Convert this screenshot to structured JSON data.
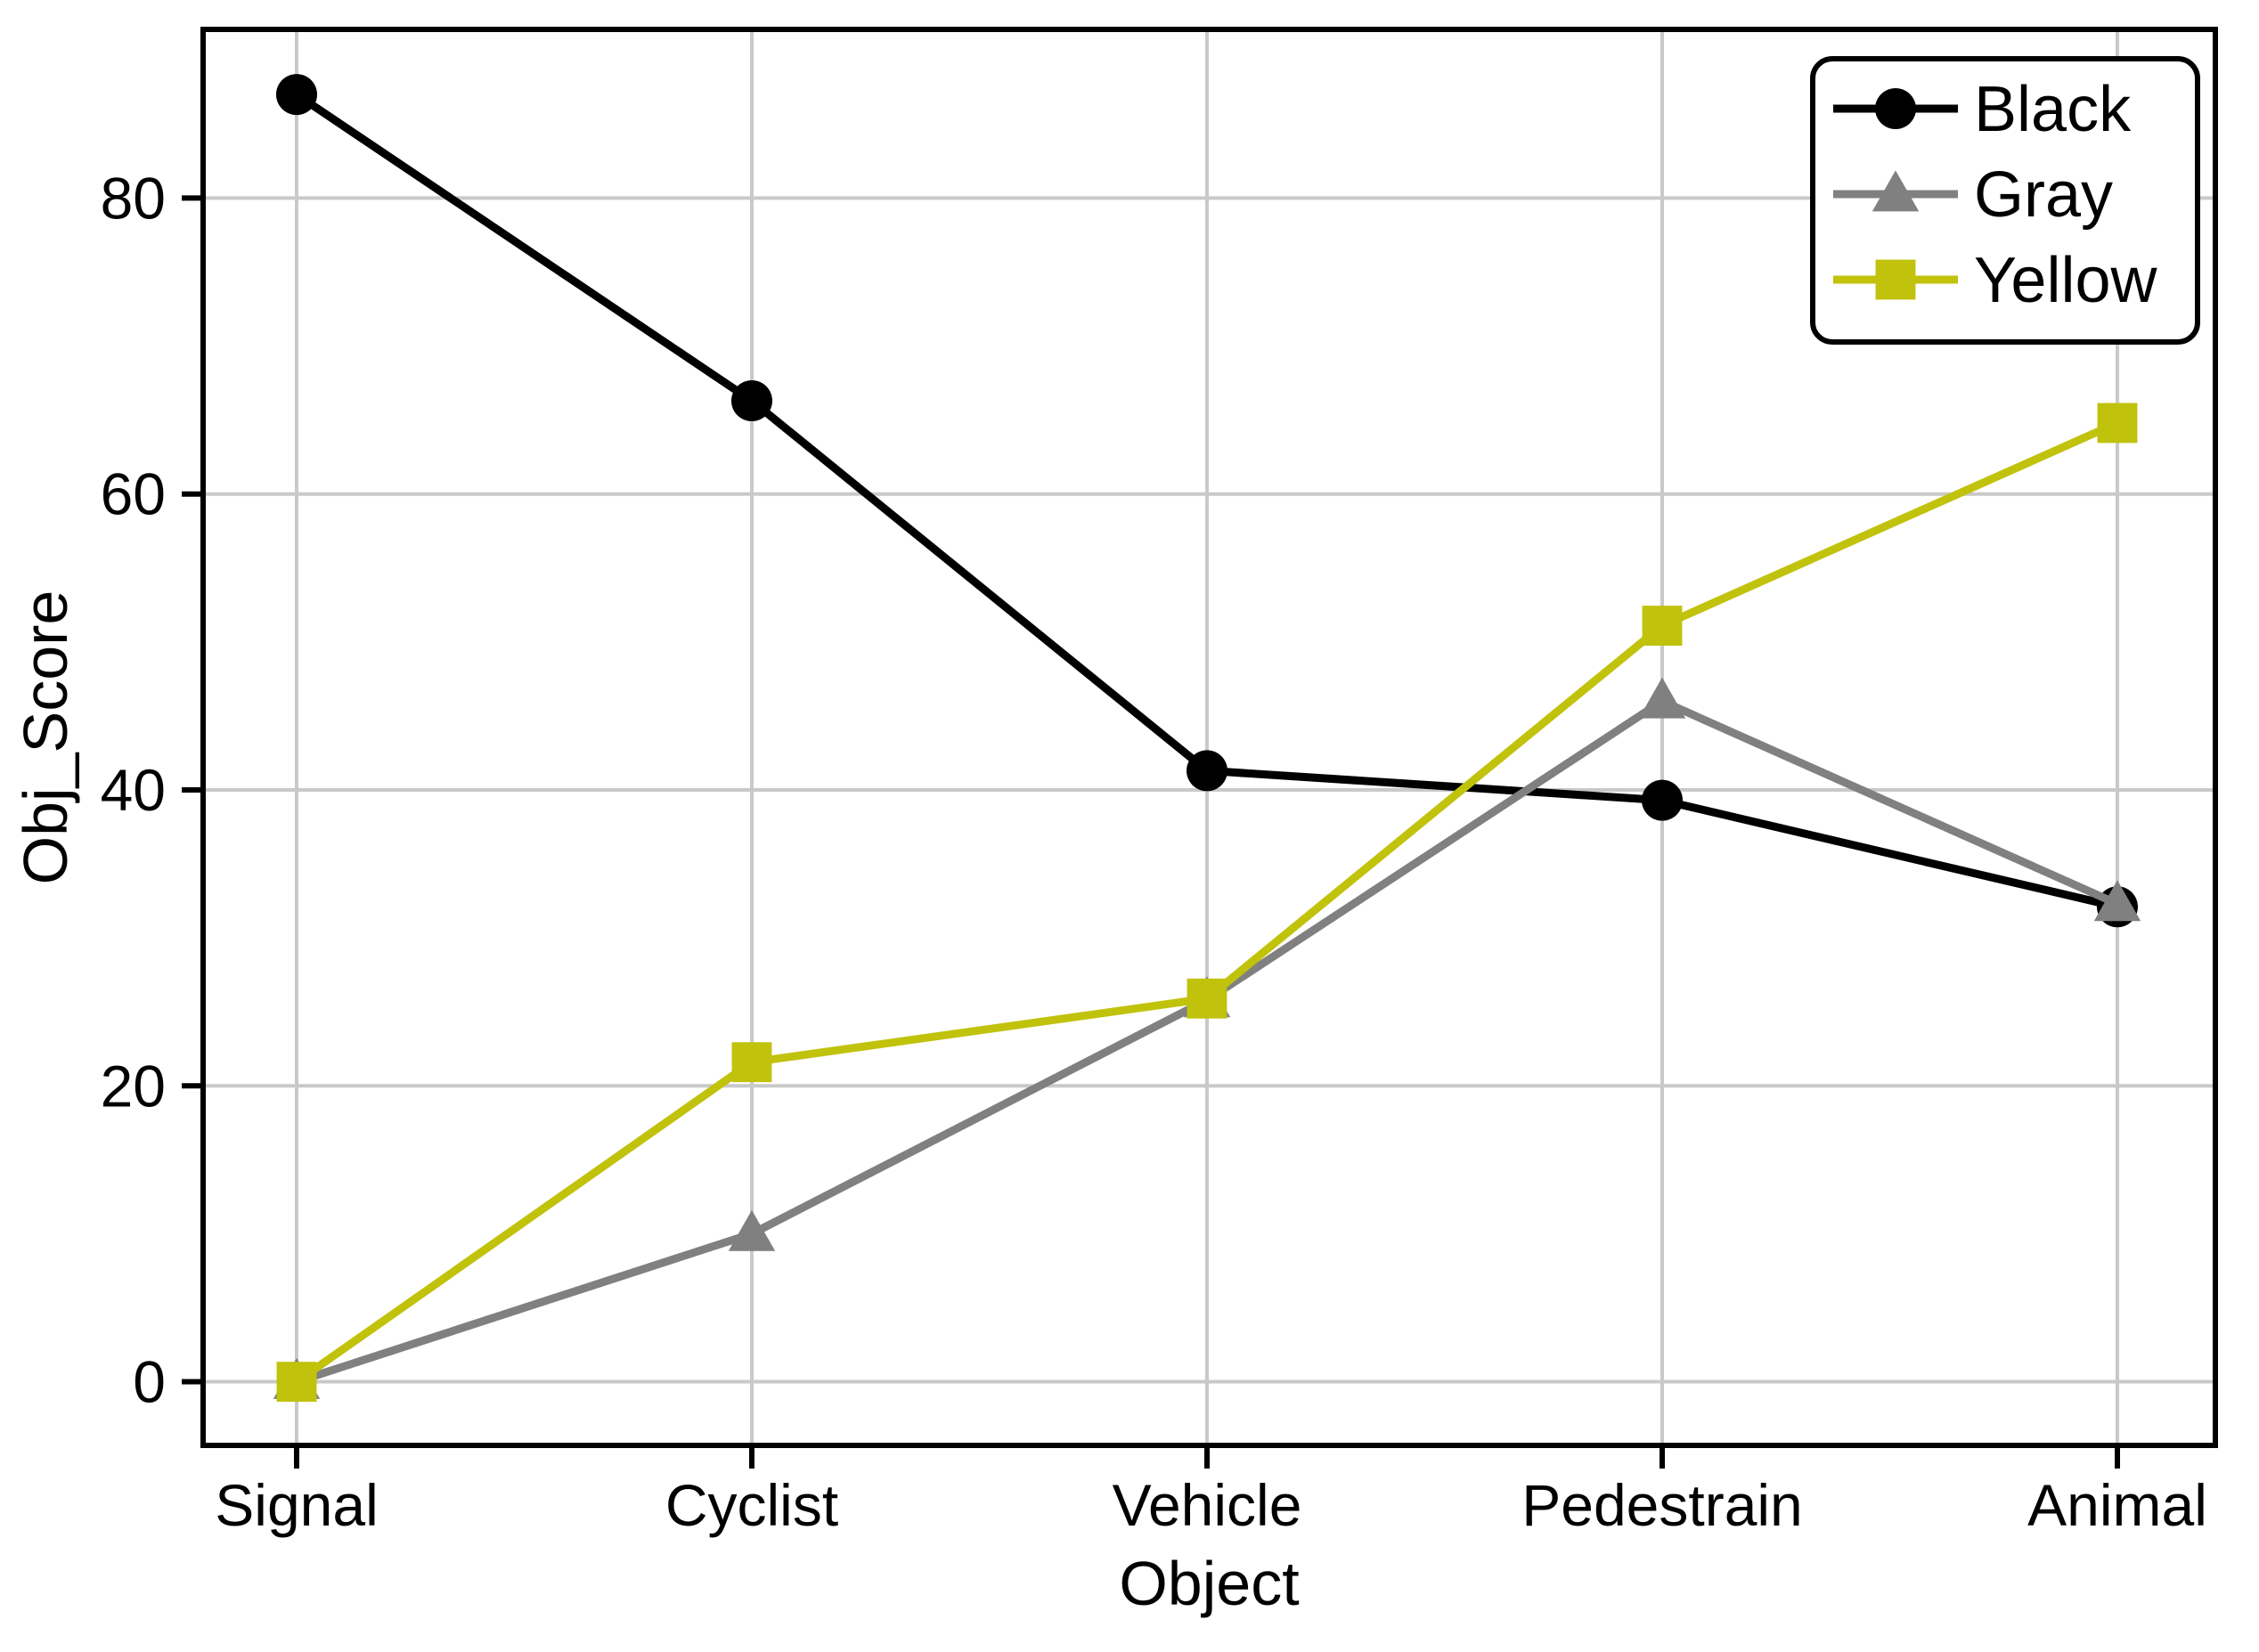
{
  "chart_data": {
    "type": "line",
    "title": "",
    "xlabel": "Object",
    "ylabel": "Obj_Score",
    "categories": [
      "Signal",
      "Cyclist",
      "Vehicle",
      "Pedestrain",
      "Animal"
    ],
    "series": [
      {
        "name": "Black",
        "color": "#000000",
        "marker": "circle",
        "values": [
          87.0,
          66.3,
          41.3,
          39.3,
          32.1
        ]
      },
      {
        "name": "Gray",
        "color": "#808080",
        "marker": "triangle",
        "values": [
          0.0,
          10.0,
          25.8,
          46.0,
          32.3
        ]
      },
      {
        "name": "Yellow",
        "color": "#c1c20c",
        "marker": "square",
        "values": [
          0.0,
          21.6,
          25.9,
          51.1,
          64.8
        ]
      }
    ],
    "yticks": [
      0,
      20,
      40,
      60,
      80
    ],
    "ylim": [
      -4.3,
      91.4
    ],
    "grid": true,
    "grid_color": "#c9c9c9",
    "axis_color": "#000000",
    "background": "#ffffff",
    "legend_position": "upper-right"
  }
}
